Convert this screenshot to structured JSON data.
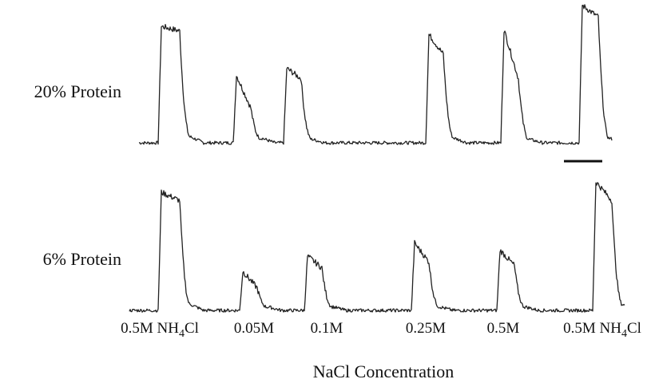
{
  "chart_data": {
    "type": "line",
    "title": "",
    "xlabel": "NaCl Concentration",
    "ylabel": "",
    "grid": false,
    "legend": "none",
    "categories": [
      {
        "main": "0.5M NH",
        "sub": "4",
        "tail": "Cl"
      },
      {
        "main": "0.05M",
        "sub": "",
        "tail": ""
      },
      {
        "main": "0.1M",
        "sub": "",
        "tail": ""
      },
      {
        "main": "0.25M",
        "sub": "",
        "tail": ""
      },
      {
        "main": "0.5M",
        "sub": "",
        "tail": ""
      },
      {
        "main": "0.5M NH",
        "sub": "4",
        "tail": "Cl"
      }
    ],
    "series": [
      {
        "name": "20% Protein",
        "responses": [
          {
            "peak": 1.0,
            "shoulder": 0.96,
            "tail": 0.05
          },
          {
            "peak": 0.58,
            "shoulder": 0.3,
            "tail": 0.04
          },
          {
            "peak": 0.64,
            "shoulder": 0.55,
            "tail": 0.03
          },
          {
            "peak": 0.93,
            "shoulder": 0.76,
            "tail": 0.04
          },
          {
            "peak": 0.97,
            "shoulder": 0.55,
            "tail": 0.03
          },
          {
            "peak": 1.18,
            "shoulder": 1.08,
            "tail": 0.04
          }
        ]
      },
      {
        "name": "6% Protein",
        "responses": [
          {
            "peak": 1.0,
            "shoulder": 0.93,
            "tail": 0.05
          },
          {
            "peak": 0.33,
            "shoulder": 0.19,
            "tail": 0.03
          },
          {
            "peak": 0.46,
            "shoulder": 0.36,
            "tail": 0.03
          },
          {
            "peak": 0.57,
            "shoulder": 0.41,
            "tail": 0.03
          },
          {
            "peak": 0.51,
            "shoulder": 0.38,
            "tail": 0.03
          },
          {
            "peak": 1.09,
            "shoulder": 0.93,
            "tail": 0.05
          }
        ]
      }
    ]
  }
}
